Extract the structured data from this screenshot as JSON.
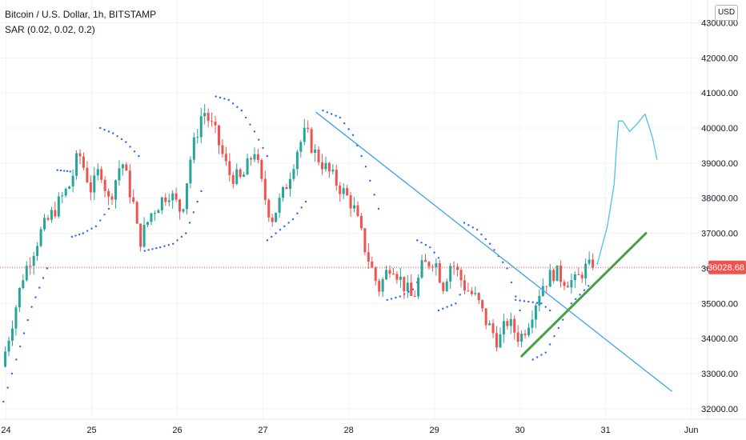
{
  "header": {
    "symbol_line": "Bitcoin / U.S. Dollar, 1h, BITSTAMP",
    "indicator_line": "SAR (0.02, 0.02, 0.2)",
    "currency_button": "USD"
  },
  "colors": {
    "up": "#26a69a",
    "down": "#ef5350",
    "sar": "#2962ff",
    "trendline_down": "#3fa3e6",
    "trendline_up": "#43a047",
    "projection": "#4dc3e6",
    "price_label_bg": "#ef5350",
    "grid": "#f0f3fa"
  },
  "chart_data": {
    "type": "candlestick",
    "symbol": "Bitcoin / U.S. Dollar",
    "interval": "1h",
    "exchange": "BITSTAMP",
    "x_labels": [
      "24",
      "25",
      "26",
      "27",
      "28",
      "29",
      "30",
      "31",
      "Jun"
    ],
    "x_label_day": [
      24,
      25,
      26,
      27,
      28,
      29,
      30,
      31,
      32
    ],
    "y_labels": [
      "43000.00",
      "42000.00",
      "41000.00",
      "40000.00",
      "39000.00",
      "38000.00",
      "37000.00",
      "36000.00",
      "35000.00",
      "34000.00",
      "33000.00",
      "32000.00"
    ],
    "y_ticks": [
      43000,
      42000,
      41000,
      40000,
      39000,
      38000,
      37000,
      36000,
      35000,
      34000,
      33000,
      32000
    ],
    "ylim": [
      31700,
      43650
    ],
    "xlim": [
      23.93,
      32.19
    ],
    "last_price": 36028.68,
    "last_price_label": "36028.68",
    "grid": true,
    "price_path": [
      [
        23.95,
        33200
      ],
      [
        24.2,
        35800
      ],
      [
        24.4,
        37000
      ],
      [
        24.55,
        37600
      ],
      [
        24.75,
        38400
      ],
      [
        24.85,
        39300
      ],
      [
        25.0,
        38200
      ],
      [
        25.1,
        38900
      ],
      [
        25.2,
        37900
      ],
      [
        25.35,
        39100
      ],
      [
        25.5,
        37700
      ],
      [
        25.55,
        36700
      ],
      [
        25.7,
        37600
      ],
      [
        25.9,
        38200
      ],
      [
        26.05,
        37600
      ],
      [
        26.15,
        39100
      ],
      [
        26.3,
        40550
      ],
      [
        26.45,
        39800
      ],
      [
        26.6,
        38700
      ],
      [
        26.75,
        38500
      ],
      [
        26.9,
        39400
      ],
      [
        27.0,
        38200
      ],
      [
        27.1,
        37400
      ],
      [
        27.25,
        38200
      ],
      [
        27.4,
        39400
      ],
      [
        27.5,
        39900
      ],
      [
        27.6,
        39300
      ],
      [
        27.75,
        38800
      ],
      [
        27.9,
        38300
      ],
      [
        28.05,
        37800
      ],
      [
        28.2,
        36500
      ],
      [
        28.35,
        35400
      ],
      [
        28.5,
        36200
      ],
      [
        28.6,
        35700
      ],
      [
        28.75,
        35100
      ],
      [
        28.85,
        36000
      ],
      [
        29.0,
        36300
      ],
      [
        29.1,
        35500
      ],
      [
        29.2,
        36200
      ],
      [
        29.35,
        35500
      ],
      [
        29.5,
        35100
      ],
      [
        29.6,
        34500
      ],
      [
        29.75,
        33900
      ],
      [
        29.85,
        34500
      ],
      [
        30.0,
        34000
      ],
      [
        30.1,
        34500
      ],
      [
        30.25,
        35500
      ],
      [
        30.4,
        35900
      ],
      [
        30.5,
        35700
      ],
      [
        30.65,
        35600
      ],
      [
        30.75,
        36000
      ],
      [
        30.85,
        36028
      ]
    ],
    "sar_segments": [
      {
        "x": [
          23.97,
          24.12,
          24.3,
          24.48
        ],
        "y": [
          32200,
          33400,
          34900,
          36000
        ]
      },
      {
        "x": [
          24.6,
          24.68,
          24.75
        ],
        "y": [
          38800,
          38780,
          38760
        ]
      },
      {
        "x": [
          24.77,
          24.9,
          25.05,
          25.2
        ],
        "y": [
          36900,
          37000,
          37200,
          37700
        ]
      },
      {
        "x": [
          25.1,
          25.25,
          25.4,
          25.55
        ],
        "y": [
          40000,
          39850,
          39600,
          39200
        ]
      },
      {
        "x": [
          25.62,
          25.8,
          25.95,
          26.1,
          26.28
        ],
        "y": [
          36500,
          36600,
          36700,
          37000,
          38200
        ]
      },
      {
        "x": [
          26.45,
          26.6,
          26.75,
          26.9,
          27.05
        ],
        "y": [
          40900,
          40800,
          40500,
          39900,
          39200
        ]
      },
      {
        "x": [
          27.05,
          27.2,
          27.35,
          27.5
        ],
        "y": [
          36800,
          37100,
          37400,
          37900
        ]
      },
      {
        "x": [
          27.7,
          27.9,
          28.05,
          28.2,
          28.35
        ],
        "y": [
          40500,
          40300,
          39800,
          38900,
          37700
        ]
      },
      {
        "x": [
          28.45,
          28.6,
          28.75,
          28.85
        ],
        "y": [
          35100,
          35200,
          35400,
          35800
        ]
      },
      {
        "x": [
          28.8,
          28.95,
          29.05
        ],
        "y": [
          36800,
          36600,
          36300
        ]
      },
      {
        "x": [
          29.05,
          29.25,
          29.35
        ],
        "y": [
          34800,
          35000,
          35500
        ]
      },
      {
        "x": [
          29.35,
          29.5,
          29.65,
          29.85,
          30.0
        ],
        "y": [
          37300,
          37100,
          36700,
          36000,
          34800
        ]
      },
      {
        "x": [
          29.95,
          30.1,
          30.25,
          30.35
        ],
        "y": [
          35100,
          35050,
          35000,
          34800
        ]
      },
      {
        "x": [
          30.15,
          30.3,
          30.45,
          30.6,
          30.8
        ],
        "y": [
          33400,
          33600,
          34300,
          35000,
          35500
        ]
      }
    ],
    "drawings": [
      {
        "kind": "trendline",
        "name": "downtrend",
        "x": [
          27.62,
          31.77
        ],
        "y": [
          40450,
          32500
        ]
      },
      {
        "kind": "trendline",
        "name": "uptrend",
        "x": [
          30.02,
          31.47
        ],
        "y": [
          33500,
          37000
        ]
      },
      {
        "kind": "projection",
        "name": "forecast-path",
        "x": [
          30.9,
          31.02,
          31.1,
          31.12,
          31.15,
          31.2,
          31.28,
          31.36,
          31.46,
          31.55,
          31.6
        ],
        "y": [
          36100,
          37200,
          38400,
          39200,
          40200,
          40200,
          39900,
          40100,
          40400,
          39700,
          39100
        ]
      }
    ]
  }
}
